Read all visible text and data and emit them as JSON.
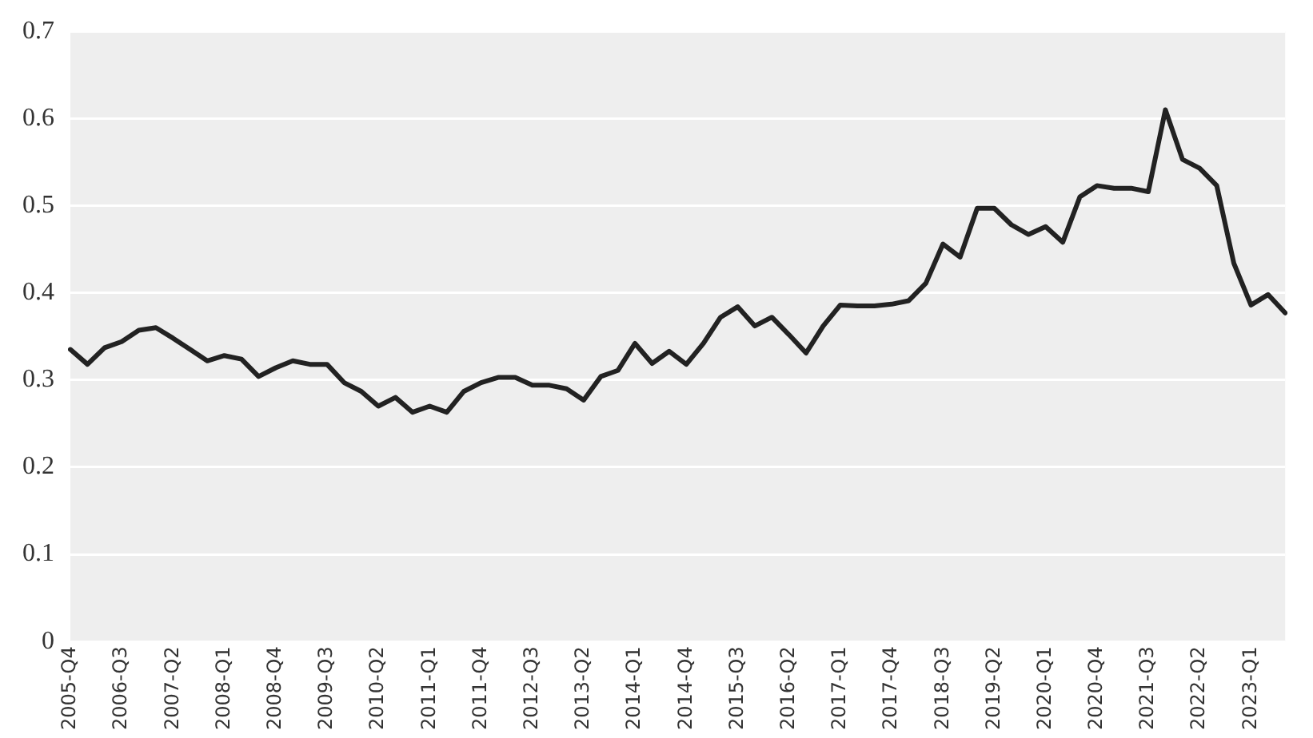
{
  "chart_data": {
    "type": "line",
    "categories": [
      "2005-Q4",
      null,
      null,
      "2006-Q3",
      null,
      null,
      "2007-Q2",
      null,
      null,
      "2008-Q1",
      null,
      null,
      "2008-Q4",
      null,
      null,
      "2009-Q3",
      null,
      null,
      "2010-Q2",
      null,
      null,
      "2011-Q1",
      null,
      null,
      "2011-Q4",
      null,
      null,
      "2012-Q3",
      null,
      null,
      "2013-Q2",
      null,
      null,
      "2014-Q1",
      null,
      null,
      "2014-Q4",
      null,
      null,
      "2015-Q3",
      null,
      null,
      "2016-Q2",
      null,
      null,
      "2017-Q1",
      null,
      null,
      "2017-Q4",
      null,
      null,
      "2018-Q3",
      null,
      null,
      "2019-Q2",
      null,
      null,
      "2020-Q1",
      null,
      null,
      "2020-Q4",
      null,
      null,
      "2021-Q3",
      null,
      null,
      "2022-Q2",
      null,
      null,
      "2023-Q1",
      null,
      null
    ],
    "series": [
      {
        "color": "#222222",
        "values": [
          0.335,
          0.318,
          0.337,
          0.344,
          0.357,
          0.36,
          0.348,
          0.335,
          0.322,
          0.328,
          0.324,
          0.304,
          0.314,
          0.322,
          0.318,
          0.318,
          0.297,
          0.287,
          0.27,
          0.28,
          0.263,
          0.27,
          0.263,
          0.287,
          0.297,
          0.303,
          0.303,
          0.294,
          0.294,
          0.29,
          0.277,
          0.304,
          0.311,
          0.342,
          0.319,
          0.333,
          0.318,
          0.342,
          0.372,
          0.384,
          0.362,
          0.372,
          0.352,
          0.331,
          0.362,
          0.386,
          0.385,
          0.385,
          0.387,
          0.391,
          0.411,
          0.456,
          0.441,
          0.497,
          0.497,
          0.478,
          0.467,
          0.476,
          0.458,
          0.51,
          0.523,
          0.52,
          0.52,
          0.516,
          0.61,
          0.553,
          0.543,
          0.523,
          0.434,
          0.386,
          0.398,
          0.377
        ]
      }
    ],
    "ylim": [
      0,
      0.7
    ],
    "yticks": [
      0,
      0.1,
      0.2,
      0.3,
      0.4,
      0.5,
      0.6,
      0.7
    ],
    "grid": "y",
    "legend": false,
    "marker": "none",
    "line_style": "solid"
  }
}
